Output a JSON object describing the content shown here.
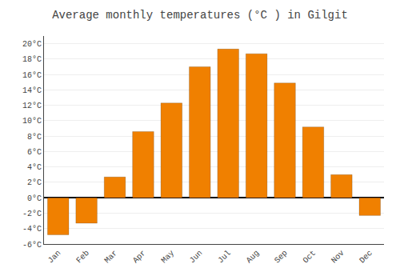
{
  "chart_data": {
    "type": "bar",
    "title": "Average monthly temperatures (°C ) in Gilgit",
    "categories": [
      "Jan",
      "Feb",
      "Mar",
      "Apr",
      "May",
      "Jun",
      "Jul",
      "Aug",
      "Sep",
      "Oct",
      "Nov",
      "Dec"
    ],
    "values": [
      -4.8,
      -3.3,
      2.7,
      8.6,
      12.3,
      17.0,
      19.3,
      18.7,
      14.9,
      9.2,
      3.0,
      -2.3
    ],
    "color": "#F08000",
    "ylim": [
      -6,
      21
    ],
    "yticks": [
      {
        "value": -6,
        "label": "-6°C"
      },
      {
        "value": -4,
        "label": "-4°C"
      },
      {
        "value": -2,
        "label": "-2°C"
      },
      {
        "value": 0,
        "label": "0°C"
      },
      {
        "value": 2,
        "label": "2°C"
      },
      {
        "value": 4,
        "label": "4°C"
      },
      {
        "value": 6,
        "label": "6°C"
      },
      {
        "value": 8,
        "label": "8°C"
      },
      {
        "value": 10,
        "label": "10°C"
      },
      {
        "value": 12,
        "label": "12°C"
      },
      {
        "value": 14,
        "label": "14°C"
      },
      {
        "value": 16,
        "label": "16°C"
      },
      {
        "value": 18,
        "label": "18°C"
      },
      {
        "value": 20,
        "label": "20°C"
      }
    ],
    "grid": true
  }
}
